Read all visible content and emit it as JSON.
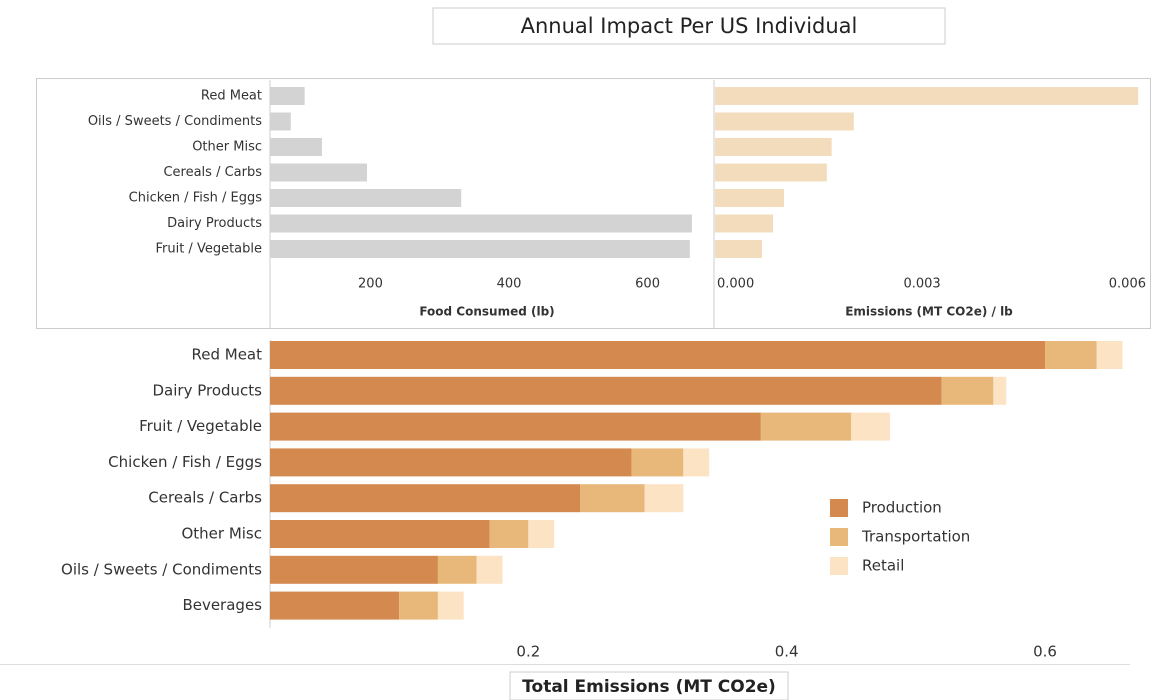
{
  "title": "Annual Impact Per US Individual",
  "chart_data": [
    {
      "type": "bar",
      "orientation": "horizontal",
      "x_label": "Food Consumed (lb)",
      "categories": [
        "Red Meat",
        "Oils / Sweets / Condiments",
        "Other Misc",
        "Cereals / Carbs",
        "Chicken / Fish / Eggs",
        "Dairy Products",
        "Fruit / Vegetable"
      ],
      "values": [
        105,
        85,
        130,
        195,
        331,
        664,
        661
      ],
      "color": "#d3d3d3",
      "xlim": [
        55,
        680
      ],
      "xticks": [
        200,
        400,
        600
      ]
    },
    {
      "type": "bar",
      "orientation": "horizontal",
      "x_label": "Emissions (MT CO2e) / lb",
      "categories": [
        "Red Meat",
        "Oils / Sweets / Condiments",
        "Other Misc",
        "Cereals / Carbs",
        "Chicken / Fish / Eggs",
        "Dairy Products",
        "Fruit / Vegetable"
      ],
      "values": [
        0.00613,
        0.00201,
        0.00169,
        0.00162,
        0.001,
        0.00084,
        0.00068
      ],
      "color": "#f2dcbc",
      "xlim": [
        0,
        0.0062
      ],
      "xticks": [
        {
          "value": 0,
          "label": "0.000"
        },
        {
          "value": 0.003,
          "label": "0.003"
        },
        {
          "value": 0.006,
          "label": "0.006"
        }
      ]
    },
    {
      "type": "stacked-bar",
      "orientation": "horizontal",
      "x_label": "Total Emissions (MT CO2e)",
      "categories": [
        "Red Meat",
        "Dairy Products",
        "Fruit / Vegetable",
        "Chicken / Fish / Eggs",
        "Cereals / Carbs",
        "Other Misc",
        "Oils / Sweets / Condiments",
        "Beverages"
      ],
      "series": [
        {
          "name": "Production",
          "color": "#d4894f",
          "values": [
            0.6,
            0.52,
            0.38,
            0.28,
            0.24,
            0.17,
            0.13,
            0.1
          ]
        },
        {
          "name": "Transportation",
          "color": "#e8b87a",
          "values": [
            0.04,
            0.04,
            0.07,
            0.04,
            0.05,
            0.03,
            0.03,
            0.03
          ]
        },
        {
          "name": "Retail",
          "color": "#fbe3c4",
          "values": [
            0.02,
            0.01,
            0.03,
            0.02,
            0.03,
            0.02,
            0.02,
            0.02
          ]
        }
      ],
      "xlim": [
        0,
        0.665
      ],
      "xticks": [
        0.2,
        0.4,
        0.6
      ],
      "legend": "right"
    }
  ]
}
